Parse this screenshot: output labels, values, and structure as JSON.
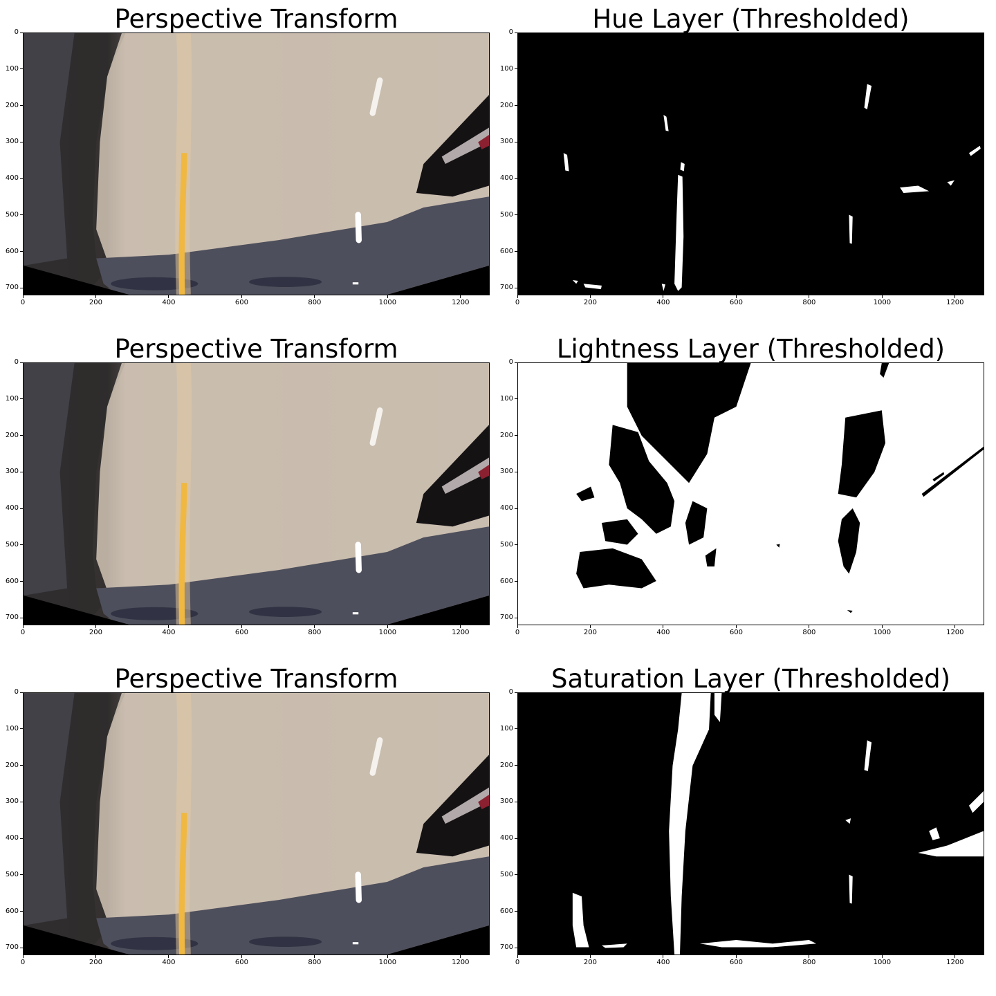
{
  "panels": [
    {
      "title": "Perspective Transform",
      "kind": "road"
    },
    {
      "title": "Hue Layer (Thresholded)",
      "kind": "hue"
    },
    {
      "title": "Perspective Transform",
      "kind": "road"
    },
    {
      "title": "Lightness Layer (Thresholded)",
      "kind": "lightness"
    },
    {
      "title": "Perspective Transform",
      "kind": "road"
    },
    {
      "title": "Saturation Layer (Thresholded)",
      "kind": "saturation"
    }
  ],
  "axes": {
    "x_ticks": [
      "0",
      "200",
      "400",
      "600",
      "800",
      "1000",
      "1200"
    ],
    "y_ticks": [
      "0",
      "100",
      "200",
      "300",
      "400",
      "500",
      "600",
      "700"
    ],
    "x_range": [
      0,
      1280
    ],
    "y_range": [
      0,
      720
    ]
  },
  "colors": {
    "road_asphalt": "#4e4f5c",
    "road_light": "#c9bcae",
    "yellow_line": "#f0b840",
    "dark_edge": "#2e2b2b",
    "mask_on": "#ffffff",
    "mask_off": "#000000"
  }
}
